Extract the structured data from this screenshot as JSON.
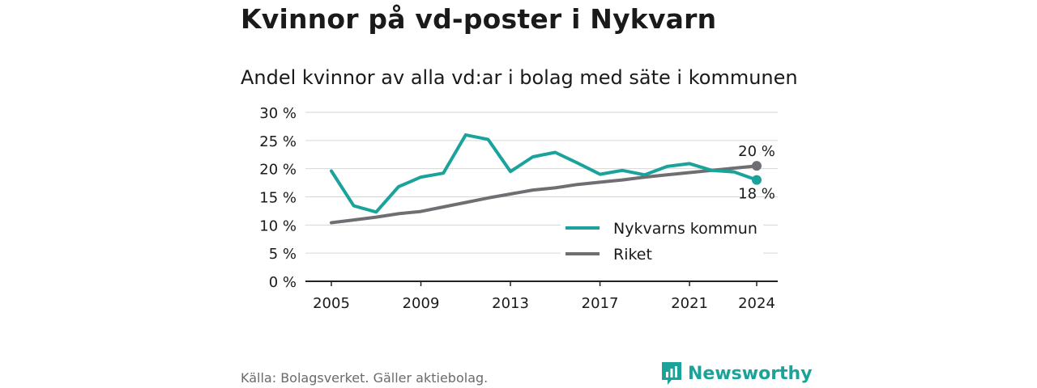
{
  "header": {
    "title": "Kvinnor på vd-poster i Nykvarn",
    "subtitle": "Andel kvinnor av alla vd:ar i bolag med säte i kommunen"
  },
  "footer": {
    "source": "Källa: Bolagsverket. Gäller aktiebolag.",
    "brand": "Newsworthy"
  },
  "colors": {
    "series_1": "#1aa39a",
    "series_2": "#6e6e73",
    "grid": "#d6d6d6",
    "axis": "#222222",
    "brand": "#1aa39a"
  },
  "chart_data": {
    "type": "line",
    "title": "Kvinnor på vd-poster i Nykvarn",
    "subtitle": "Andel kvinnor av alla vd:ar i bolag med säte i kommunen",
    "xlabel": "",
    "ylabel": "",
    "ylim": [
      0,
      30
    ],
    "xlim": [
      2005,
      2024
    ],
    "y_ticks": [
      "0 %",
      "5 %",
      "10 %",
      "15 %",
      "20 %",
      "25 %",
      "30 %"
    ],
    "x_ticks": [
      "2005",
      "2009",
      "2013",
      "2017",
      "2021",
      "2024"
    ],
    "grid": "horizontal",
    "legend_position": "bottom-right",
    "x": [
      2005,
      2006,
      2007,
      2008,
      2009,
      2010,
      2011,
      2012,
      2013,
      2014,
      2015,
      2016,
      2017,
      2018,
      2019,
      2020,
      2021,
      2022,
      2023,
      2024
    ],
    "series": [
      {
        "name": "Nykvarns kommun",
        "values": [
          19.6,
          13.4,
          12.3,
          16.8,
          18.5,
          19.2,
          26.0,
          25.2,
          19.5,
          22.1,
          22.9,
          21.0,
          19.0,
          19.7,
          18.9,
          20.4,
          20.9,
          19.7,
          19.4,
          18.0
        ],
        "end_label": "18 %"
      },
      {
        "name": "Riket",
        "values": [
          10.4,
          10.9,
          11.4,
          12.0,
          12.4,
          13.2,
          14.0,
          14.8,
          15.5,
          16.2,
          16.6,
          17.2,
          17.6,
          18.0,
          18.5,
          18.9,
          19.3,
          19.7,
          20.1,
          20.5
        ],
        "end_label": "20 %"
      }
    ]
  }
}
